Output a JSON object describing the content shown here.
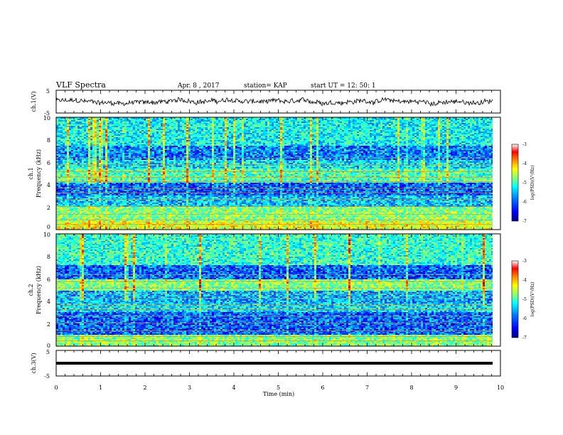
{
  "header": {
    "title": "VLF Spectra",
    "date": "Apr. 8  , 2017",
    "station": "station= KAP",
    "start": "start  UT =   12: 50: 1"
  },
  "chart_data": [
    {
      "type": "line",
      "panel": "ch1-waveform",
      "ylabel": "ch.1(V)",
      "ylim": [
        -5,
        5
      ],
      "yticks": [
        "5",
        "-5"
      ],
      "x_range_min": [
        0,
        9.8
      ],
      "description_values": "fluctuating signal around 0 V, amplitude roughly ±2 V"
    },
    {
      "type": "heatmap",
      "panel": "ch1-spectrogram",
      "ylabel": "ch.1\nFrequency  (kHz)",
      "ylim": [
        0,
        10
      ],
      "yticks": [
        "0",
        "2",
        "4",
        "6",
        "8",
        "10"
      ],
      "colorbar": {
        "label": "log(PSD)(V²/Hz)",
        "range": [
          -7,
          -3
        ],
        "ticks": [
          "-3",
          "-4",
          "-5",
          "-6",
          "-7"
        ]
      }
    },
    {
      "type": "heatmap",
      "panel": "ch2-spectrogram",
      "ylabel": "ch.2\nFrequency  (kHz)",
      "ylim": [
        0,
        10
      ],
      "yticks": [
        "0",
        "2",
        "4",
        "6",
        "8",
        "10"
      ],
      "colorbar": {
        "label": "log(PSD)(V²/Hz)",
        "range": [
          -7,
          -3
        ],
        "ticks": [
          "-3",
          "-4",
          "-5",
          "-6",
          "-7"
        ]
      }
    },
    {
      "type": "line",
      "panel": "ch3-waveform",
      "ylabel": "ch.3(V)",
      "ylim": [
        -5,
        5
      ],
      "yticks": [
        "5",
        "-5"
      ],
      "flat_value": -1.5
    }
  ],
  "xaxis": {
    "label": "Time  (min)",
    "range": [
      0,
      10
    ],
    "ticks": [
      "0",
      "1",
      "2",
      "3",
      "4",
      "5",
      "6",
      "7",
      "8",
      "9",
      "10"
    ]
  },
  "colors": {
    "cmap": [
      "#00007f",
      "#0000ff",
      "#007fff",
      "#00ffff",
      "#7fff7f",
      "#ffff00",
      "#ff7f00",
      "#ff0000",
      "#7f0000"
    ]
  }
}
